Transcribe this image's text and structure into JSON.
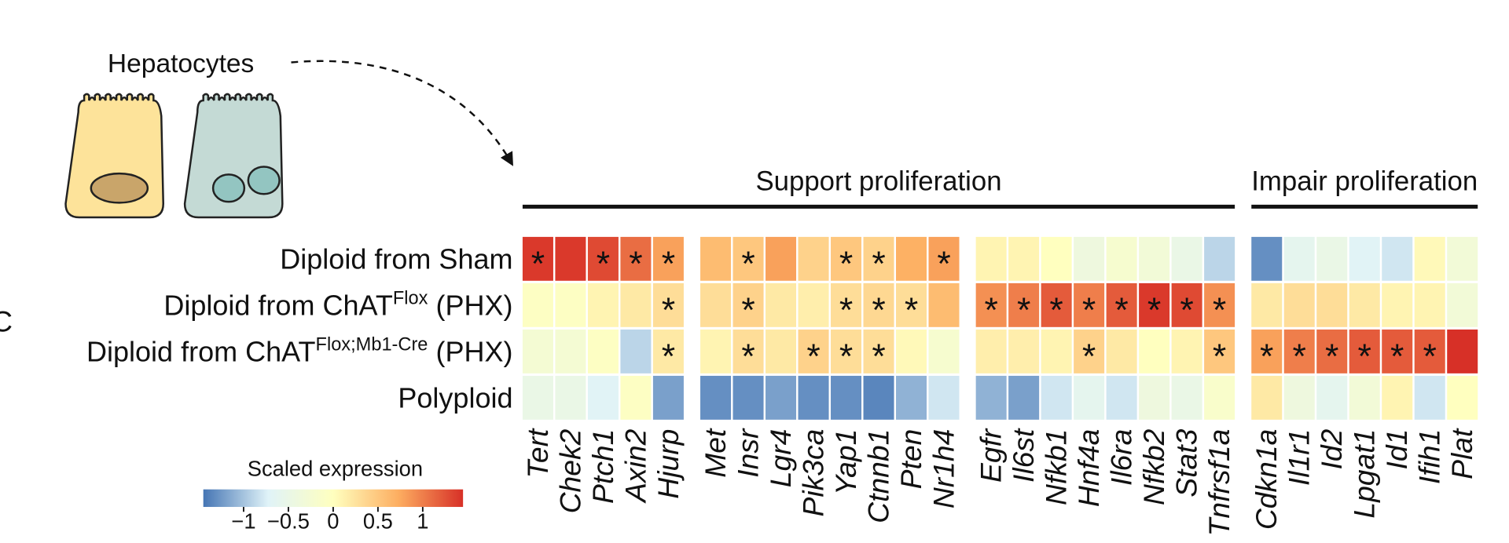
{
  "chart_data": {
    "type": "heatmap",
    "panel_label": "C",
    "illustration_label": "Hepatocytes",
    "headers": [
      {
        "text": "Support proliferation",
        "groups": [
          0,
          1,
          2
        ]
      },
      {
        "text": "Impair proliferation",
        "groups": [
          3
        ]
      }
    ],
    "rows": [
      {
        "text": "Diploid from Sham"
      },
      {
        "text": "Diploid from ChAT",
        "sup": "Flox",
        "after": " (PHX)"
      },
      {
        "text": "Diploid from ChAT",
        "sup": "Flox;Mb1-Cre",
        "after": " (PHX)"
      },
      {
        "text": "Polyploid"
      }
    ],
    "columns": [
      [
        "Tert",
        "Chek2",
        "Ptch1",
        "Axin2",
        "Hjurp"
      ],
      [
        "Met",
        "Insr",
        "Lgr4",
        "Pik3ca",
        "Yap1",
        "Ctnnb1",
        "Pten",
        "Nr1h4"
      ],
      [
        "Egfr",
        "Il6st",
        "Nfkb1",
        "Hnf4a",
        "Il6ra",
        "Nfkb2",
        "Stat3",
        "Tnfrsf1a"
      ],
      [
        "Cdkn1a",
        "Il1r1",
        "Id2",
        "Lpgat1",
        "Id1",
        "Ifih1",
        "Plat"
      ]
    ],
    "values": [
      [
        1.4,
        1.4,
        1.3,
        1.1,
        0.8,
        0.6,
        0.5,
        0.8,
        0.4,
        0.5,
        0.4,
        0.7,
        0.8,
        0.1,
        0.1,
        0,
        -0.4,
        -0.2,
        -0.3,
        -0.5,
        -0.9,
        -1.3,
        -0.6,
        -0.5,
        -0.7,
        -0.8,
        0.05,
        -0.3
      ],
      [
        -0.05,
        -0.05,
        0.1,
        0.2,
        0.3,
        0.3,
        0.4,
        0.2,
        0.15,
        0.3,
        0.35,
        0.3,
        0.6,
        0.9,
        1.0,
        1.2,
        1.0,
        1.2,
        1.4,
        1.3,
        0.9,
        0.2,
        0.3,
        0.3,
        0.2,
        0.1,
        0.1,
        -0.3
      ],
      [
        -0.25,
        -0.25,
        -0.05,
        -0.9,
        0.2,
        0.1,
        0.3,
        0.2,
        0.4,
        0.3,
        0.3,
        0.05,
        -0.2,
        0.15,
        0.15,
        0.1,
        0.4,
        0.2,
        0,
        0.1,
        0.5,
        0.8,
        1.0,
        1.1,
        1.2,
        1.2,
        1.2,
        1.45
      ],
      [
        -0.5,
        -0.5,
        -0.7,
        -0.05,
        -1.2,
        -1.3,
        -1.3,
        -1.2,
        -1.3,
        -1.3,
        -1.35,
        -1.1,
        -0.8,
        -1.1,
        -1.2,
        -0.8,
        -0.6,
        -0.8,
        -0.4,
        -0.5,
        -0.15,
        0.2,
        -0.4,
        -0.6,
        -0.3,
        0.1,
        -0.8,
        0
      ]
    ],
    "significance": [
      [
        "*",
        null,
        "*",
        "*",
        "*",
        null,
        "*",
        null,
        null,
        "*",
        "*",
        null,
        "*",
        null,
        null,
        null,
        null,
        null,
        null,
        null,
        null,
        null,
        null,
        null,
        null,
        null,
        null,
        null
      ],
      [
        null,
        null,
        null,
        null,
        "*",
        null,
        "*",
        null,
        null,
        "*",
        "*",
        "*",
        null,
        "*",
        "*",
        "*",
        "*",
        "*",
        "*",
        "*",
        "*",
        null,
        null,
        null,
        null,
        null,
        null,
        null
      ],
      [
        null,
        null,
        null,
        null,
        "*",
        null,
        "*",
        null,
        "*",
        "*",
        "*",
        null,
        null,
        null,
        null,
        null,
        "*",
        null,
        null,
        null,
        "*",
        "*",
        "*",
        "*",
        "*",
        "*",
        "*",
        null
      ]
    ],
    "colorbar_title": "Scaled expression",
    "clim": [
      -1.45,
      1.45
    ],
    "colormap": [
      "#4575b4",
      "#e0f3f8",
      "#ffffbf",
      "#fdae61",
      "#d73027"
    ],
    "cticks": [
      {
        "value": -1,
        "label": "−1"
      },
      {
        "value": -0.5,
        "label": "−0.5"
      },
      0,
      0.5,
      1
    ]
  }
}
